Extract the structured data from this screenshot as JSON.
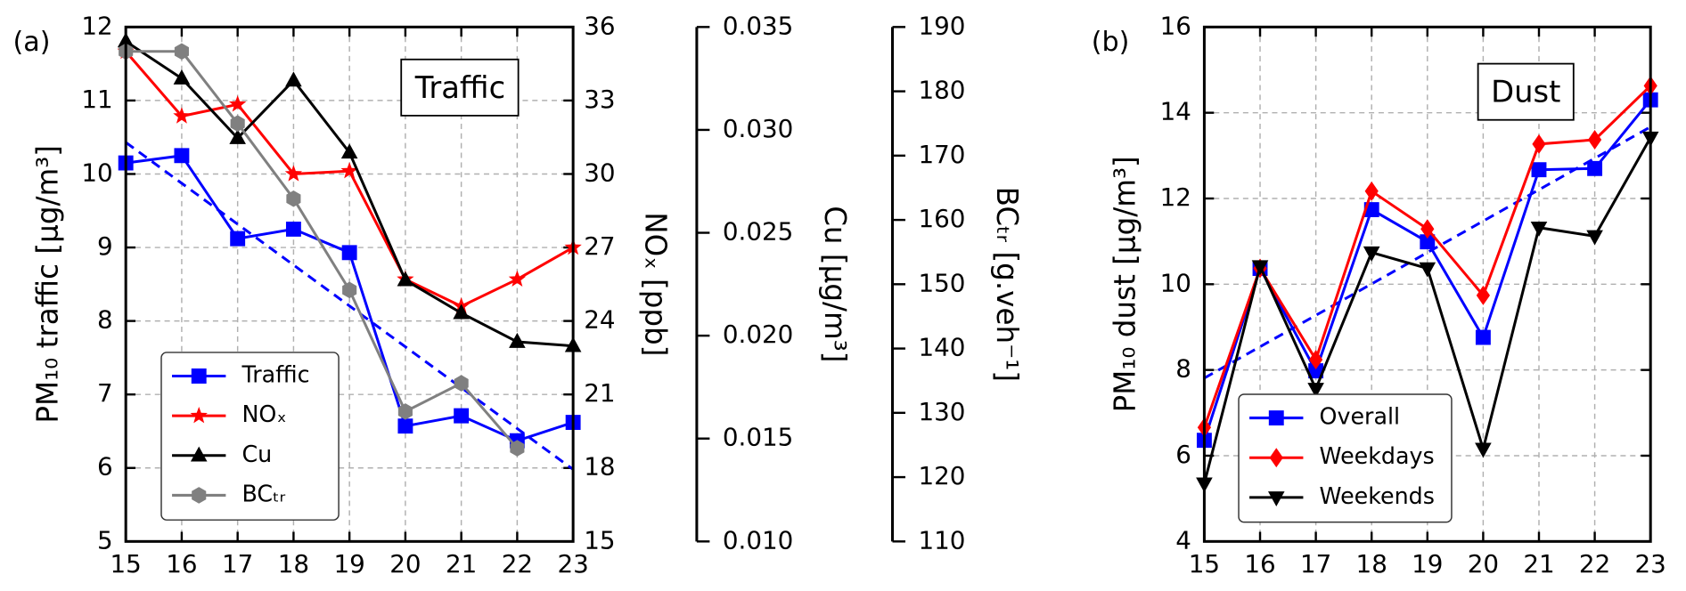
{
  "chart_data": [
    {
      "type": "line",
      "panel_label": "(a)",
      "annotation": "Traffic",
      "x": [
        15,
        16,
        17,
        18,
        19,
        20,
        21,
        22,
        23
      ],
      "xlim": [
        15,
        23
      ],
      "xticks": [
        15,
        16,
        17,
        18,
        19,
        20,
        21,
        22,
        23
      ],
      "ylim": [
        5,
        12
      ],
      "yticks": [
        5,
        6,
        7,
        8,
        9,
        10,
        11,
        12
      ],
      "ylabel": "PM₁₀ traffic [μg/m³]",
      "y2lim": [
        15,
        36
      ],
      "y2ticks": [
        15,
        18,
        21,
        24,
        27,
        30,
        33,
        36
      ],
      "y2label": "NOₓ [ppb]",
      "y3lim": [
        0.01,
        0.035
      ],
      "y3ticks": [
        {
          "value": 0.01,
          "label": "0.010"
        },
        0.015,
        {
          "value": 0.02,
          "label": "0.020"
        },
        0.025,
        {
          "value": 0.03,
          "label": "0.030"
        },
        0.035
      ],
      "y3label": "Cu [μg/m³]",
      "y4lim": [
        110,
        190
      ],
      "y4ticks": [
        110,
        120,
        130,
        140,
        150,
        160,
        170,
        180,
        190
      ],
      "y4label": "BCₜᵣ [g.veh⁻¹]",
      "grid": true,
      "legend": "lower left",
      "series": [
        {
          "name": "Traffic",
          "color": "#0000ff",
          "marker": "square",
          "axis": "y",
          "values": [
            10.15,
            10.25,
            9.12,
            9.25,
            8.93,
            6.57,
            6.71,
            6.37,
            6.62
          ]
        },
        {
          "name": "NOₓ",
          "color": "#ff0000",
          "marker": "star",
          "axis": "y2",
          "values": [
            35.0,
            32.36,
            32.84,
            30.0,
            30.12,
            25.7,
            24.6,
            25.7,
            27.0
          ]
        },
        {
          "name": "Cu",
          "color": "#000000",
          "marker": "triangle-up",
          "axis": "y3",
          "values": [
            0.0343,
            0.0325,
            0.0296,
            0.0324,
            0.0289,
            0.0227,
            0.0211,
            0.0197,
            0.0195
          ]
        },
        {
          "name": "BCₜᵣ",
          "color": "#808080",
          "marker": "hexagon",
          "axis": "y4",
          "values": [
            186.2,
            186.2,
            175.0,
            163.3,
            149.1,
            130.2,
            134.6,
            124.5,
            null
          ]
        }
      ],
      "trend": {
        "color": "#0000ff",
        "style": "dashed",
        "values": [
          10.43,
          5.98
        ]
      }
    },
    {
      "type": "line",
      "panel_label": "(b)",
      "annotation": "Dust",
      "x": [
        15,
        16,
        17,
        18,
        19,
        20,
        21,
        22,
        23
      ],
      "xlim": [
        15,
        23
      ],
      "xticks": [
        15,
        16,
        17,
        18,
        19,
        20,
        21,
        22,
        23
      ],
      "ylim": [
        4,
        16
      ],
      "yticks": [
        4,
        6,
        8,
        10,
        12,
        14,
        16
      ],
      "ylabel": "PM₁₀ dust [μg/m³]",
      "grid": true,
      "legend": "lower left",
      "series": [
        {
          "name": "Overall",
          "color": "#0000ff",
          "marker": "square",
          "axis": "y",
          "values": [
            6.36,
            10.37,
            7.98,
            11.74,
            10.99,
            8.76,
            12.67,
            12.7,
            14.3
          ]
        },
        {
          "name": "Weekdays",
          "color": "#ff0000",
          "marker": "diamond",
          "axis": "y",
          "values": [
            6.66,
            10.37,
            8.24,
            12.17,
            11.29,
            9.74,
            13.27,
            13.37,
            14.63
          ]
        },
        {
          "name": "Weekends",
          "color": "#000000",
          "marker": "triangle-down",
          "axis": "y",
          "values": [
            5.35,
            10.42,
            7.56,
            10.74,
            10.37,
            6.16,
            11.32,
            11.12,
            13.42
          ]
        }
      ],
      "trend": {
        "color": "#0000ff",
        "style": "dashed",
        "values": [
          7.81,
          13.67
        ]
      }
    }
  ]
}
